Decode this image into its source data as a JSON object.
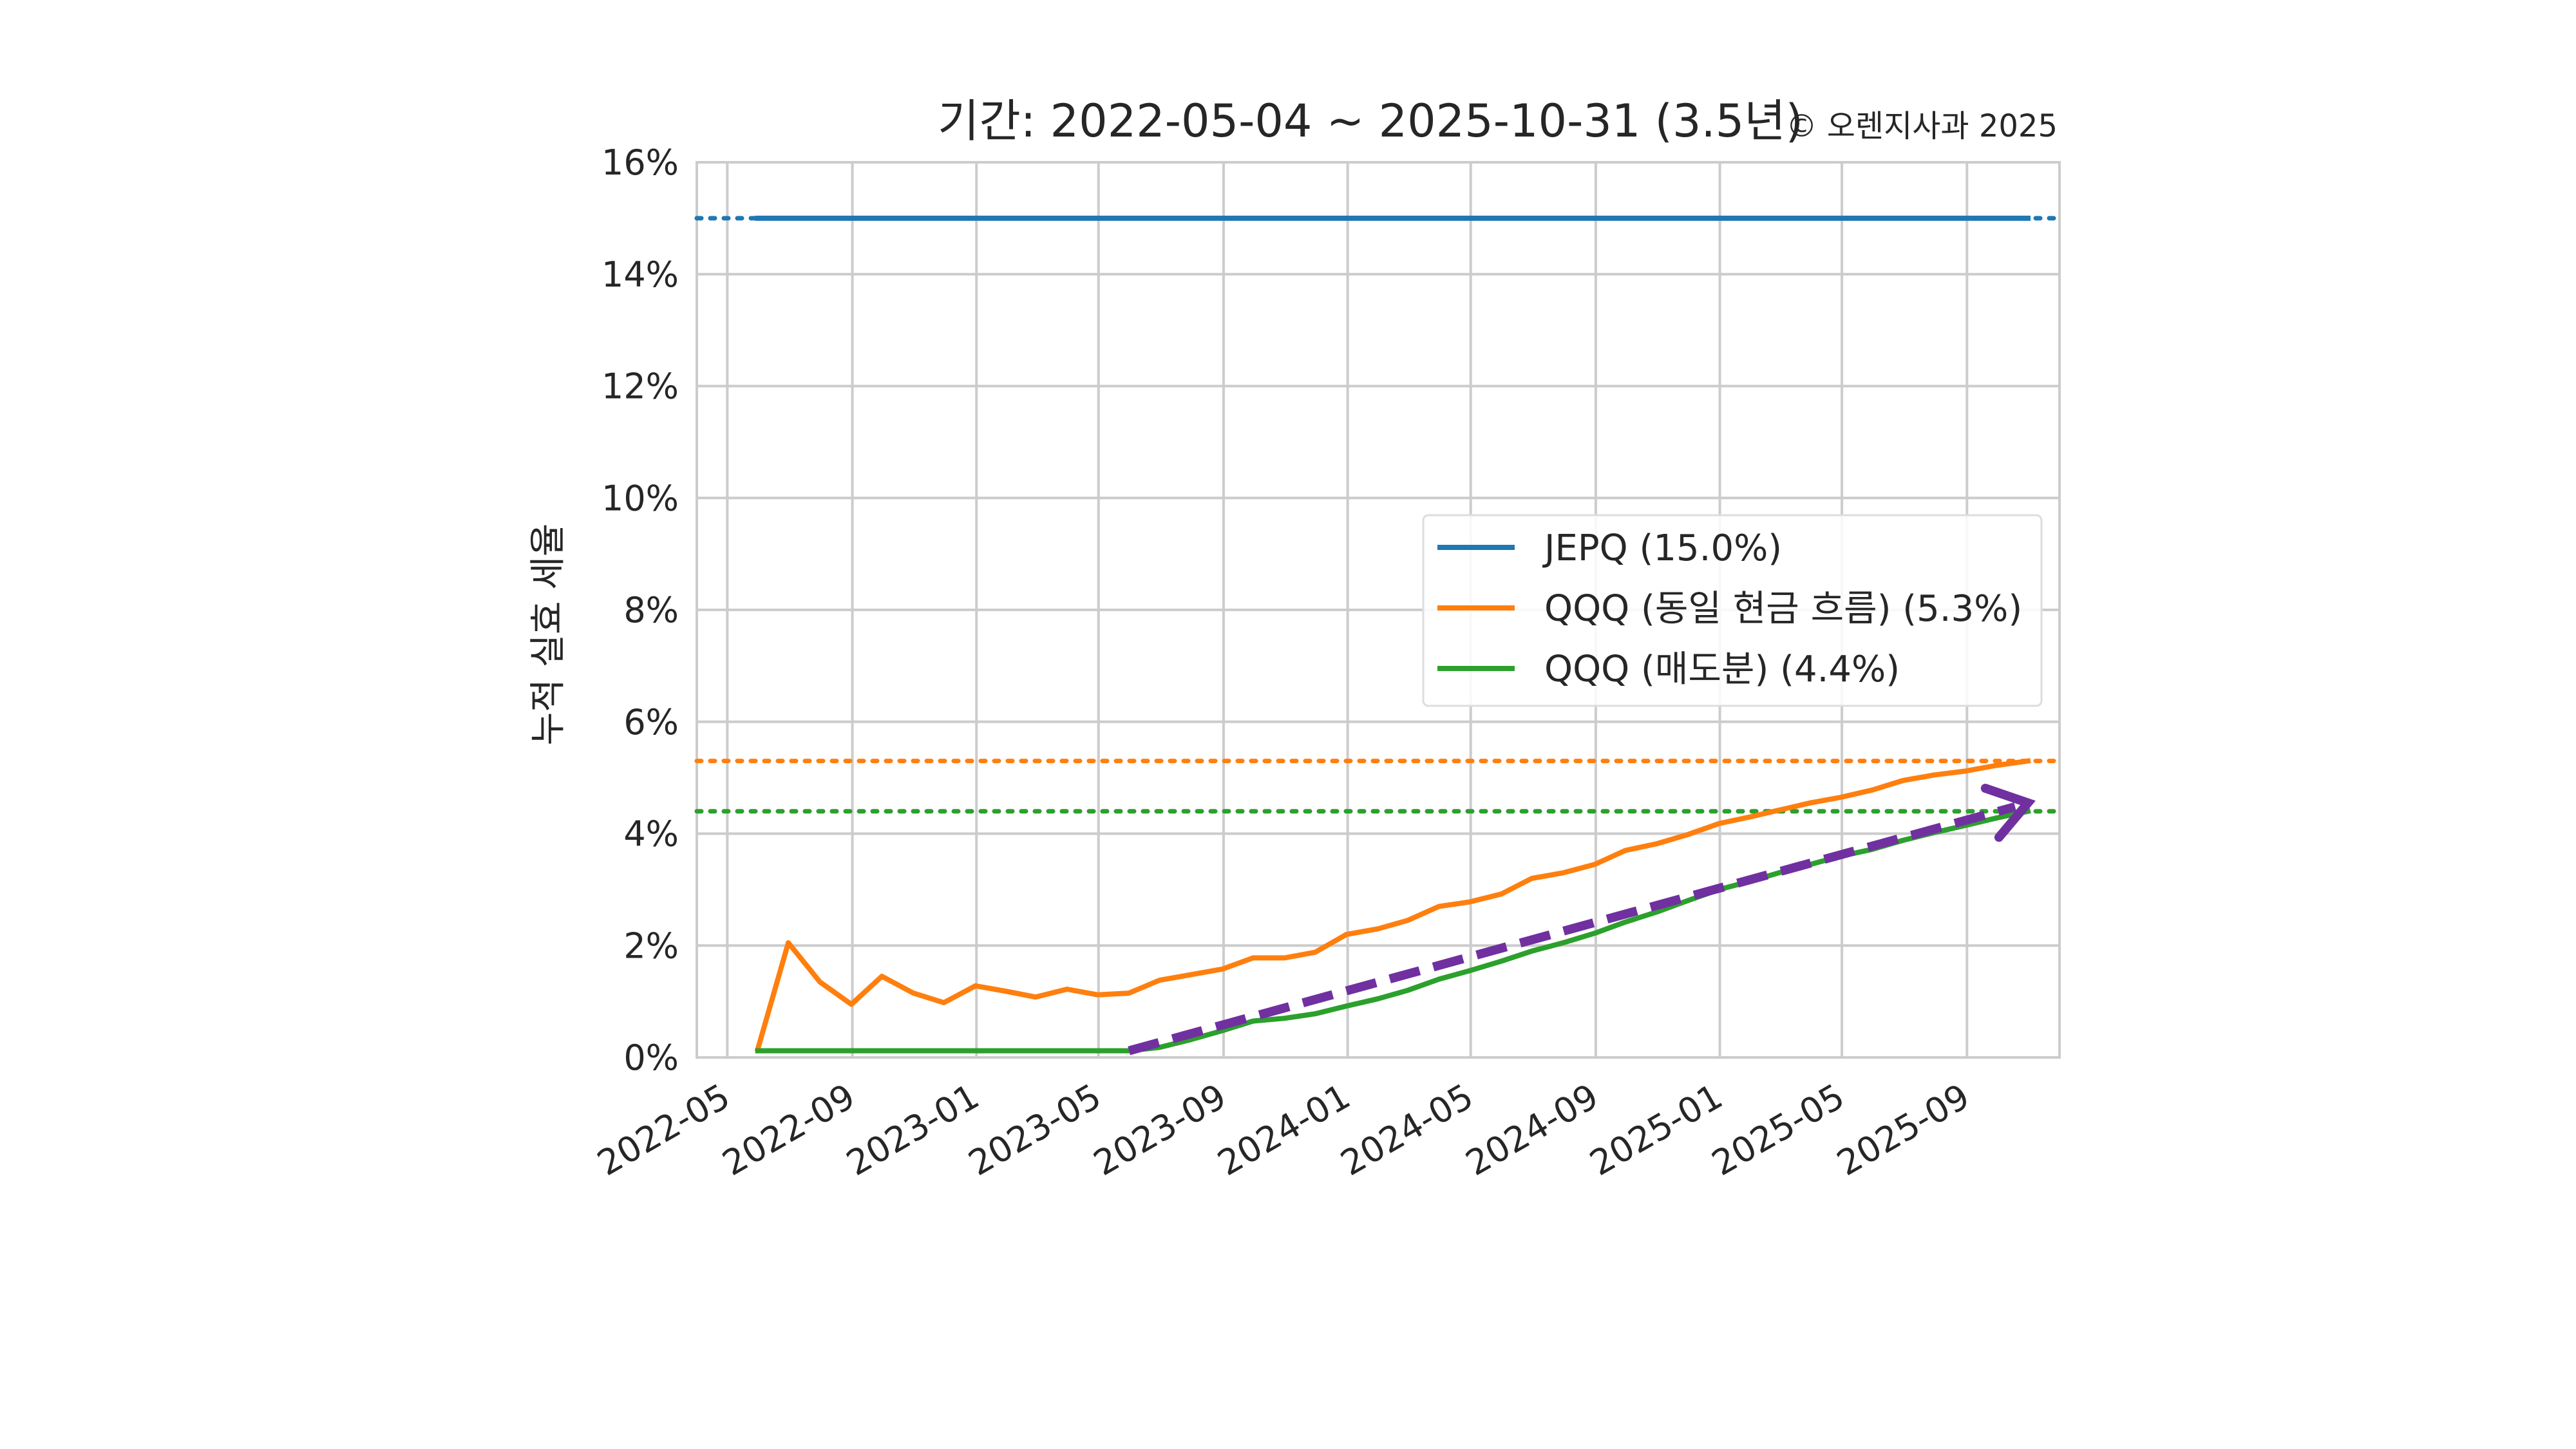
{
  "chart_data": {
    "type": "line",
    "title": "기간: 2022-05-04 ~ 2025-10-31 (3.5년)",
    "copyright": "© 오렌지사과 2025",
    "ylabel": "누적 실효 세율",
    "xlabel": "",
    "x_ticks": [
      "2022-05",
      "2022-09",
      "2023-01",
      "2023-05",
      "2023-09",
      "2024-01",
      "2024-05",
      "2024-09",
      "2025-01",
      "2025-05",
      "2025-09"
    ],
    "y_ticks": [
      "0%",
      "2%",
      "4%",
      "6%",
      "8%",
      "10%",
      "12%",
      "14%",
      "16%"
    ],
    "xlim": [
      "2022-04-01",
      "2025-12-01"
    ],
    "ylim": [
      0,
      16
    ],
    "grid": true,
    "legend_position": "center-right",
    "series": [
      {
        "name": "JEPQ (15.0%)",
        "color": "#1f77b4",
        "reference_level": 15.0,
        "x": [
          "2022-05-31",
          "2025-10-31"
        ],
        "y": [
          15.0,
          15.0
        ]
      },
      {
        "name": "QQQ (동일 현금 흐름) (5.3%)",
        "color": "#ff7f0e",
        "reference_level": 5.3,
        "x": [
          "2022-05-31",
          "2022-06-30",
          "2022-07-31",
          "2022-08-31",
          "2022-09-30",
          "2022-10-31",
          "2022-11-30",
          "2022-12-31",
          "2023-01-31",
          "2023-02-28",
          "2023-03-31",
          "2023-04-30",
          "2023-05-31",
          "2023-06-30",
          "2023-07-31",
          "2023-08-31",
          "2023-09-30",
          "2023-10-31",
          "2023-11-30",
          "2023-12-31",
          "2024-01-31",
          "2024-02-29",
          "2024-03-31",
          "2024-04-30",
          "2024-05-31",
          "2024-06-30",
          "2024-07-31",
          "2024-08-31",
          "2024-09-30",
          "2024-10-31",
          "2024-11-30",
          "2024-12-31",
          "2025-01-31",
          "2025-02-28",
          "2025-03-31",
          "2025-04-30",
          "2025-05-31",
          "2025-06-30",
          "2025-07-31",
          "2025-08-31",
          "2025-09-30",
          "2025-10-31"
        ],
        "y": [
          0.15,
          2.05,
          1.35,
          0.95,
          1.45,
          1.15,
          0.98,
          1.28,
          1.18,
          1.08,
          1.22,
          1.12,
          1.15,
          1.38,
          1.48,
          1.58,
          1.78,
          1.78,
          1.88,
          2.2,
          2.3,
          2.45,
          2.7,
          2.78,
          2.92,
          3.2,
          3.3,
          3.45,
          3.7,
          3.82,
          3.98,
          4.18,
          4.3,
          4.42,
          4.55,
          4.65,
          4.78,
          4.95,
          5.05,
          5.12,
          5.22,
          5.3
        ]
      },
      {
        "name": "QQQ (매도분) (4.4%)",
        "color": "#2ca02c",
        "reference_level": 4.4,
        "x": [
          "2022-05-31",
          "2023-05-31",
          "2023-06-30",
          "2023-07-31",
          "2023-08-31",
          "2023-09-30",
          "2023-10-31",
          "2023-11-30",
          "2023-12-31",
          "2024-01-31",
          "2024-02-29",
          "2024-03-31",
          "2024-04-30",
          "2024-05-31",
          "2024-06-30",
          "2024-07-31",
          "2024-08-31",
          "2024-09-30",
          "2024-10-31",
          "2024-11-30",
          "2024-12-31",
          "2025-01-31",
          "2025-02-28",
          "2025-03-31",
          "2025-04-30",
          "2025-05-31",
          "2025-06-30",
          "2025-07-31",
          "2025-08-31",
          "2025-09-30",
          "2025-10-31"
        ],
        "y": [
          0.12,
          0.12,
          0.18,
          0.32,
          0.48,
          0.65,
          0.7,
          0.78,
          0.92,
          1.05,
          1.2,
          1.4,
          1.55,
          1.72,
          1.9,
          2.05,
          2.22,
          2.42,
          2.6,
          2.8,
          3.0,
          3.15,
          3.3,
          3.45,
          3.6,
          3.72,
          3.88,
          4.02,
          4.15,
          4.28,
          4.4
        ]
      }
    ],
    "trend_arrow": {
      "color": "#7030a0",
      "x": [
        "2023-05-31",
        "2025-10-31"
      ],
      "y": [
        0.12,
        4.55
      ]
    }
  }
}
